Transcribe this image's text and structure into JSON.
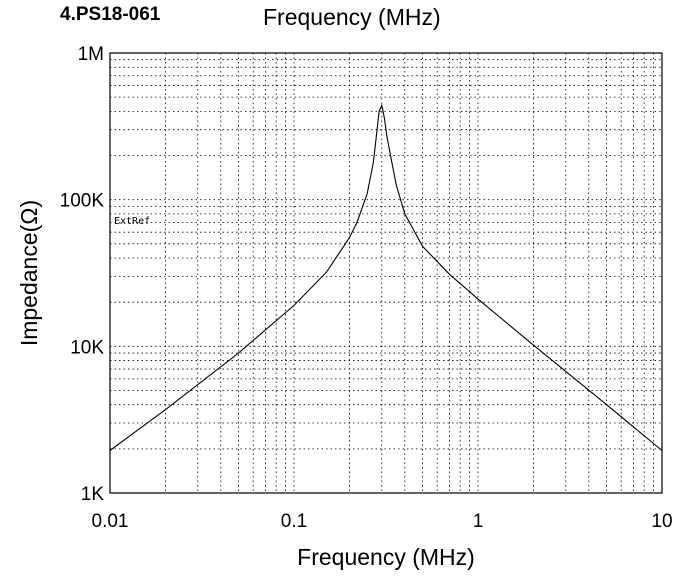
{
  "header": {
    "model": "4.PS18-061",
    "title": "Frequency (MHz)"
  },
  "chart_data": {
    "type": "line",
    "xscale": "log",
    "yscale": "log",
    "xlabel": "Frequency (MHz)",
    "ylabel": "Impedance(Ω)",
    "xlim": [
      0.01,
      10
    ],
    "ylim": [
      1000,
      1000000
    ],
    "x_ticks": [
      {
        "value": 0.01,
        "label": "0.01"
      },
      {
        "value": 0.1,
        "label": "0.1"
      },
      {
        "value": 1,
        "label": "1"
      },
      {
        "value": 10,
        "label": "10"
      }
    ],
    "y_ticks": [
      {
        "value": 1000,
        "label": "1K"
      },
      {
        "value": 10000,
        "label": "10K"
      },
      {
        "value": 100000,
        "label": "100K"
      },
      {
        "value": 1000000,
        "label": "1M"
      }
    ],
    "annotation": "ExtRef",
    "grid": true,
    "series": [
      {
        "color": "#000000",
        "x": [
          0.01,
          0.02,
          0.05,
          0.1,
          0.15,
          0.2,
          0.22,
          0.25,
          0.27,
          0.28,
          0.29,
          0.3,
          0.31,
          0.32,
          0.34,
          0.36,
          0.4,
          0.5,
          0.7,
          1,
          2,
          5,
          10
        ],
        "y": [
          1950,
          3700,
          9000,
          19000,
          32000,
          55000,
          70000,
          110000,
          180000,
          270000,
          400000,
          440000,
          360000,
          270000,
          180000,
          125000,
          80000,
          48000,
          31000,
          21000,
          10200,
          4000,
          1950
        ]
      }
    ]
  }
}
